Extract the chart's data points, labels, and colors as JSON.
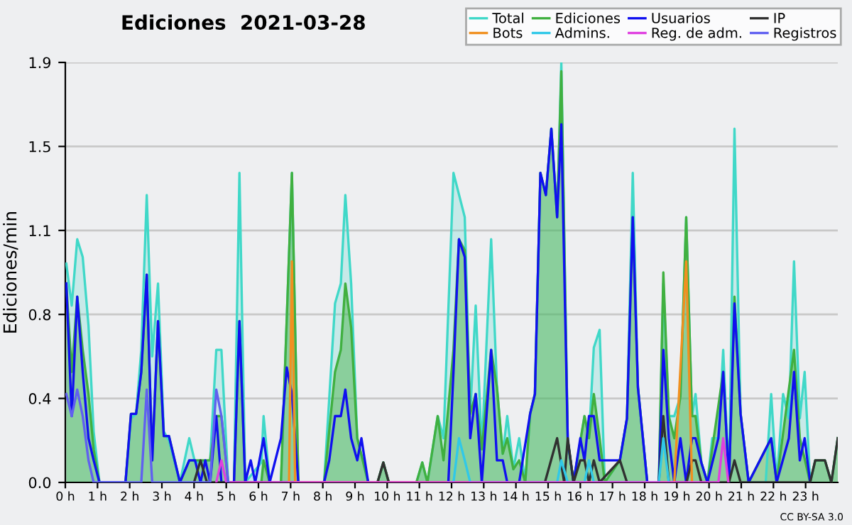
{
  "chart_data": {
    "type": "line",
    "title": "Ediciones  2021-03-28",
    "ylabel": "Ediciones/min",
    "xlim": [
      0,
      24
    ],
    "xticks": [
      {
        "value": 0,
        "label": "0 h"
      },
      {
        "value": 1,
        "label": "1 h"
      },
      {
        "value": 2,
        "label": "2 h"
      },
      {
        "value": 3,
        "label": "3 h"
      },
      {
        "value": 4,
        "label": "4 h"
      },
      {
        "value": 5,
        "label": "5 h"
      },
      {
        "value": 6,
        "label": "6 h"
      },
      {
        "value": 7,
        "label": "7 h"
      },
      {
        "value": 8,
        "label": "8 h"
      },
      {
        "value": 9,
        "label": "9 h"
      },
      {
        "value": 10,
        "label": "10 h"
      },
      {
        "value": 11,
        "label": "11 h"
      },
      {
        "value": 12,
        "label": "12 h"
      },
      {
        "value": 13,
        "label": "13 h"
      },
      {
        "value": 14,
        "label": "14 h"
      },
      {
        "value": 15,
        "label": "15 h"
      },
      {
        "value": 16,
        "label": "16 h"
      },
      {
        "value": 17,
        "label": "17 h"
      },
      {
        "value": 18,
        "label": "18 h"
      },
      {
        "value": 19,
        "label": "19 h"
      },
      {
        "value": 20,
        "label": "20 h"
      },
      {
        "value": 21,
        "label": "21 h"
      },
      {
        "value": 22,
        "label": "22 h"
      },
      {
        "value": 23,
        "label": "23 h"
      }
    ],
    "ylim": [
      0,
      1.9
    ],
    "yticks": [
      {
        "value": 0,
        "label": "0.0"
      },
      {
        "value": 0.38,
        "label": "0.4"
      },
      {
        "value": 0.76,
        "label": "0.8"
      },
      {
        "value": 1.14,
        "label": "1.1"
      },
      {
        "value": 1.52,
        "label": "1.5"
      },
      {
        "value": 1.9,
        "label": "1.9"
      }
    ],
    "grid": "y",
    "legend": "top right",
    "marker": "none",
    "line_style": "solid",
    "annotations": [
      "CC BY-SA 3.0"
    ],
    "series": [
      {
        "name": "Total",
        "type": "area",
        "color": "#40d8c8",
        "x": [
          0.03,
          0.2,
          0.37,
          0.54,
          0.72,
          0.88,
          1.06,
          1.87,
          2.04,
          2.2,
          2.36,
          2.53,
          2.7,
          2.88,
          3.06,
          3.22,
          3.56,
          3.85,
          4.03,
          4.5,
          4.69,
          4.85,
          5.06,
          5.24,
          5.41,
          5.59,
          6.09,
          6.16,
          6.35,
          6.7,
          7.04,
          7.24,
          8.04,
          8.38,
          8.56,
          8.7,
          8.88,
          9.07,
          9.41,
          9.7,
          9.88,
          10.05,
          10.91,
          11.09,
          11.25,
          11.57,
          11.75,
          12.06,
          12.41,
          12.58,
          12.75,
          12.94,
          13.23,
          13.41,
          13.59,
          13.73,
          13.92,
          14.1,
          14.29,
          14.44,
          14.59,
          14.76,
          14.93,
          15.1,
          15.28,
          15.41,
          15.61,
          15.79,
          16.13,
          16.27,
          16.42,
          16.6,
          16.76,
          17.23,
          17.45,
          17.63,
          17.79,
          18.08,
          18.44,
          18.58,
          18.75,
          18.92,
          19.11,
          19.29,
          19.47,
          19.58,
          19.76,
          19.95,
          20.1,
          20.29,
          20.44,
          20.62,
          20.79,
          20.98,
          21.23,
          21.76,
          21.93,
          22.1,
          22.3,
          22.48,
          22.64,
          22.82,
          22.97,
          23.14,
          23.3,
          23.6,
          23.8,
          24
        ],
        "values": [
          0.99,
          0.8,
          1.1,
          1.02,
          0.71,
          0.23,
          0,
          0,
          0.29,
          0.31,
          0.6,
          1.3,
          0.57,
          0.9,
          0.23,
          0.19,
          0,
          0.2,
          0.09,
          0.1,
          0.6,
          0.6,
          0,
          0,
          1.4,
          0,
          0.09,
          0.3,
          0,
          0,
          1.4,
          0,
          0,
          0.81,
          0.9,
          1.3,
          0.9,
          0.2,
          0,
          0,
          0.09,
          0,
          0,
          0.09,
          0,
          0.3,
          0.2,
          1.4,
          1.2,
          0.31,
          0.8,
          0.15,
          1.1,
          0.43,
          0.13,
          0.3,
          0.06,
          0.2,
          0,
          0.31,
          0.4,
          1.4,
          1.3,
          1.6,
          1.2,
          1.9,
          0.19,
          0,
          0.3,
          0.2,
          0.61,
          0.69,
          0,
          0.1,
          0.29,
          1.4,
          0.43,
          0,
          0,
          0.9,
          0.3,
          0.3,
          0.39,
          1.2,
          0.3,
          0.4,
          0.09,
          0,
          0.2,
          0.2,
          0.6,
          0,
          1.6,
          0.31,
          0,
          0,
          0.4,
          0,
          0.4,
          0.29,
          1.0,
          0.29,
          0.5,
          0,
          0.1,
          0.1,
          0,
          0.2
        ]
      },
      {
        "name": "Ediciones",
        "type": "area",
        "color": "#40b040",
        "x": [
          0.03,
          0.2,
          0.37,
          0.54,
          0.72,
          0.88,
          1.06,
          1.87,
          2.04,
          2.2,
          2.36,
          2.53,
          2.7,
          2.88,
          3.06,
          3.22,
          3.56,
          3.85,
          4.03,
          4.5,
          4.69,
          4.85,
          5.06,
          5.24,
          5.41,
          5.59,
          6.09,
          6.16,
          6.35,
          6.7,
          7.04,
          7.24,
          8.04,
          8.38,
          8.56,
          8.7,
          8.88,
          9.07,
          9.41,
          9.7,
          9.88,
          10.05,
          10.91,
          11.09,
          11.25,
          11.57,
          11.75,
          12.06,
          12.23,
          12.41,
          12.58,
          12.75,
          12.94,
          13.23,
          13.41,
          13.59,
          13.73,
          13.92,
          14.1,
          14.29,
          14.44,
          14.59,
          14.76,
          14.93,
          15.1,
          15.28,
          15.41,
          15.61,
          15.79,
          16.13,
          16.27,
          16.42,
          16.6,
          16.76,
          17.23,
          17.45,
          17.63,
          17.79,
          18.08,
          18.44,
          18.58,
          18.75,
          18.92,
          19.11,
          19.29,
          19.47,
          19.58,
          19.76,
          19.95,
          20.44,
          20.62,
          20.79,
          20.98,
          21.23,
          21.93,
          22.1,
          22.64,
          22.82,
          23.14,
          23.3,
          23.6,
          23.8,
          24
        ],
        "values": [
          0.9,
          0.5,
          0.84,
          0.6,
          0.4,
          0.15,
          0,
          0,
          0.31,
          0.31,
          0.5,
          0.94,
          0.1,
          0.73,
          0.21,
          0.21,
          0,
          0.1,
          0.1,
          0.1,
          0.3,
          0.3,
          0,
          0,
          0.73,
          0,
          0,
          0.1,
          0,
          0,
          1.4,
          0,
          0,
          0.5,
          0.6,
          0.9,
          0.7,
          0.2,
          0,
          0,
          0.09,
          0,
          0,
          0.09,
          0,
          0.3,
          0.1,
          0.6,
          1.1,
          1.05,
          0.31,
          0.4,
          0.15,
          0.6,
          0.43,
          0.13,
          0.2,
          0.06,
          0.1,
          0,
          0.31,
          0.4,
          1.4,
          1.3,
          1.6,
          1.2,
          1.86,
          0.19,
          0,
          0.3,
          0.2,
          0.4,
          0.2,
          0,
          0.1,
          0.29,
          1.2,
          0.43,
          0,
          0,
          0.95,
          0.3,
          0.2,
          0.39,
          1.2,
          0.3,
          0.3,
          0.09,
          0,
          0.5,
          0,
          0.84,
          0.31,
          0,
          0.2,
          0,
          0.6,
          0.2,
          0,
          0.1,
          0.1,
          0,
          0.2
        ]
      },
      {
        "name": "Usuarios",
        "color": "#1010f0",
        "x": [
          0.03,
          0.2,
          0.37,
          0.54,
          0.72,
          0.88,
          1.06,
          1.87,
          2.04,
          2.2,
          2.36,
          2.53,
          2.7,
          2.88,
          3.06,
          3.22,
          3.56,
          3.85,
          4.03,
          4.2,
          4.35,
          4.5,
          4.69,
          4.85,
          5.06,
          5.24,
          5.41,
          5.59,
          5.76,
          5.9,
          6.16,
          6.35,
          6.7,
          6.88,
          7.04,
          7.24,
          8.04,
          8.2,
          8.38,
          8.56,
          8.7,
          8.88,
          9.07,
          9.2,
          9.41,
          11.9,
          12.06,
          12.23,
          12.41,
          12.58,
          12.75,
          12.94,
          13.23,
          13.41,
          13.59,
          13.73,
          14.1,
          14.44,
          14.59,
          14.76,
          14.93,
          15.1,
          15.28,
          15.41,
          15.61,
          15.79,
          16.0,
          16.13,
          16.27,
          16.42,
          16.6,
          17.23,
          17.45,
          17.63,
          17.79,
          18.08,
          18.44,
          18.58,
          18.75,
          18.92,
          19.11,
          19.29,
          19.47,
          19.58,
          19.76,
          19.95,
          20.29,
          20.44,
          20.62,
          20.79,
          20.98,
          21.23,
          21.93,
          22.1,
          22.48,
          22.64,
          22.82,
          22.97,
          23.14
        ],
        "values": [
          0.9,
          0.3,
          0.84,
          0.5,
          0.2,
          0.1,
          0,
          0,
          0.31,
          0.31,
          0.5,
          0.94,
          0.1,
          0.73,
          0.21,
          0.21,
          0,
          0.1,
          0.1,
          0,
          0.1,
          0,
          0.3,
          0,
          0,
          0,
          0.73,
          0,
          0.1,
          0,
          0.2,
          0,
          0.2,
          0.52,
          0.4,
          0,
          0,
          0.1,
          0.3,
          0.3,
          0.42,
          0.2,
          0.1,
          0.2,
          0,
          0,
          0.5,
          1.1,
          1.02,
          0.2,
          0.4,
          0,
          0.6,
          0.1,
          0.1,
          0,
          0,
          0.31,
          0.4,
          1.4,
          1.3,
          1.6,
          1.2,
          1.62,
          0.19,
          0,
          0.2,
          0.1,
          0.3,
          0.3,
          0.1,
          0.1,
          0.29,
          1.2,
          0.43,
          0,
          0,
          0.6,
          0.2,
          0,
          0.2,
          0,
          0.2,
          0.2,
          0.09,
          0,
          0.2,
          0.5,
          0,
          0.81,
          0.31,
          0,
          0.2,
          0,
          0.2,
          0.5,
          0.1,
          0.2,
          0
        ]
      },
      {
        "name": "IP",
        "color": "#303030",
        "x": [
          4.0,
          4.2,
          4.4,
          9.7,
          9.88,
          10.05,
          14.9,
          15.28,
          15.5,
          15.61,
          15.79,
          16.0,
          16.13,
          16.27,
          16.42,
          16.6,
          17.23,
          17.45,
          18.44,
          18.58,
          18.75,
          19.3,
          19.47,
          19.58,
          19.76,
          20.62,
          20.79,
          20.98,
          23.14,
          23.3,
          23.6,
          23.8,
          24
        ],
        "values": [
          0,
          0.1,
          0,
          0,
          0.09,
          0,
          0,
          0.2,
          0,
          0.2,
          0,
          0.1,
          0.1,
          0,
          0.1,
          0,
          0.1,
          0,
          0,
          0.3,
          0,
          0,
          0.1,
          0.1,
          0,
          0,
          0.1,
          0,
          0,
          0.1,
          0.1,
          0,
          0.2
        ]
      },
      {
        "name": "Bots",
        "color": "#f09020",
        "x": [
          6.95,
          7.04,
          7.14,
          18.92,
          19.29,
          19.47
        ],
        "values": [
          0,
          1.0,
          0,
          0,
          1.0,
          0
        ]
      },
      {
        "name": "Admins.",
        "color": "#30c8e8",
        "x": [
          11.9,
          12.06,
          12.23,
          12.41,
          12.58,
          15.28,
          15.41,
          15.61,
          16.13,
          16.27,
          16.42,
          18.44,
          18.58,
          18.75
        ],
        "values": [
          0,
          0,
          0.2,
          0.1,
          0,
          0,
          0.1,
          0,
          0,
          0.1,
          0,
          0,
          0.2,
          0
        ]
      },
      {
        "name": "Reg. de adm.",
        "color": "#e040e0",
        "x": [
          4.69,
          4.85,
          5.0,
          20.29,
          20.44,
          20.6
        ],
        "values": [
          0,
          0.1,
          0,
          0,
          0.2,
          0
        ]
      },
      {
        "name": "Registros",
        "color": "#6060f0",
        "x": [
          0.03,
          0.2,
          0.37,
          0.54,
          0.72,
          0.88,
          2.36,
          2.53,
          2.7,
          4.5,
          4.69,
          4.85,
          5.06
        ],
        "values": [
          0.4,
          0.3,
          0.42,
          0.3,
          0.1,
          0,
          0,
          0.42,
          0,
          0,
          0.42,
          0.3,
          0
        ]
      }
    ]
  }
}
